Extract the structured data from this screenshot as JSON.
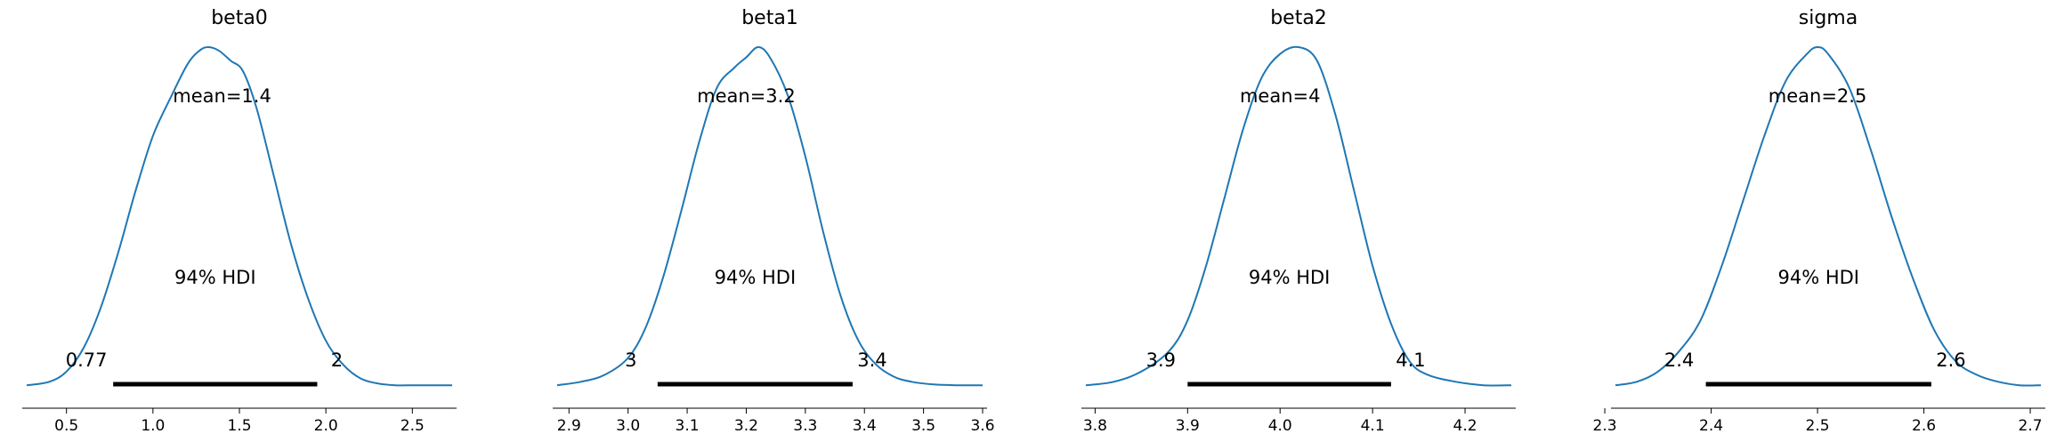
{
  "chart_data": [
    {
      "type": "area",
      "title": "beta0",
      "xlim": [
        0.27,
        2.73
      ],
      "ticks": [
        0.5,
        1.0,
        1.5,
        2.0,
        2.5
      ],
      "tick_labels": [
        "0.5",
        "1.0",
        "1.5",
        "2.0",
        "2.5"
      ],
      "mean": 1.4,
      "mean_label": "mean=1.4",
      "hdi_label": "94% HDI",
      "hdi": [
        0.77,
        1.95
      ],
      "hdi_low_label": "0.77",
      "hdi_high_label": "2",
      "density": {
        "x": [
          0.27,
          0.4,
          0.5,
          0.6,
          0.7,
          0.8,
          0.9,
          1.0,
          1.1,
          1.2,
          1.27,
          1.32,
          1.38,
          1.45,
          1.52,
          1.6,
          1.7,
          1.8,
          1.9,
          2.0,
          2.1,
          2.2,
          2.3,
          2.4,
          2.5,
          2.6,
          2.73
        ],
        "y": [
          0.01,
          0.02,
          0.05,
          0.12,
          0.24,
          0.4,
          0.58,
          0.74,
          0.85,
          0.95,
          0.99,
          1.0,
          0.99,
          0.96,
          0.93,
          0.82,
          0.62,
          0.42,
          0.26,
          0.14,
          0.07,
          0.03,
          0.015,
          0.01,
          0.01,
          0.01,
          0.01
        ]
      }
    },
    {
      "type": "area",
      "title": "beta1",
      "xlim": [
        2.88,
        3.6
      ],
      "ticks": [
        2.9,
        3.0,
        3.1,
        3.2,
        3.3,
        3.4,
        3.5,
        3.6
      ],
      "tick_labels": [
        "2.9",
        "3.0",
        "3.1",
        "3.2",
        "3.3",
        "3.4",
        "3.5",
        "3.6"
      ],
      "mean": 3.2,
      "mean_label": "mean=3.2",
      "hdi_label": "94% HDI",
      "hdi": [
        3.05,
        3.38
      ],
      "hdi_low_label": "3",
      "hdi_high_label": "3.4",
      "density": {
        "x": [
          2.88,
          2.92,
          2.96,
          3.0,
          3.03,
          3.06,
          3.09,
          3.12,
          3.15,
          3.18,
          3.2,
          3.22,
          3.24,
          3.27,
          3.3,
          3.33,
          3.36,
          3.39,
          3.42,
          3.45,
          3.48,
          3.52,
          3.56,
          3.6
        ],
        "y": [
          0.01,
          0.02,
          0.04,
          0.09,
          0.18,
          0.33,
          0.52,
          0.72,
          0.88,
          0.94,
          0.97,
          1.0,
          0.97,
          0.86,
          0.68,
          0.46,
          0.27,
          0.14,
          0.07,
          0.035,
          0.02,
          0.012,
          0.01,
          0.01
        ]
      }
    },
    {
      "type": "area",
      "title": "beta2",
      "xlim": [
        3.79,
        4.25
      ],
      "ticks": [
        3.8,
        3.9,
        4.0,
        4.1,
        4.2
      ],
      "tick_labels": [
        "3.8",
        "3.9",
        "4.0",
        "4.1",
        "4.2"
      ],
      "mean": 4.0,
      "mean_label": "mean=4",
      "hdi_label": "94% HDI",
      "hdi": [
        3.9,
        4.12
      ],
      "hdi_low_label": "3.9",
      "hdi_high_label": "4.1",
      "density": {
        "x": [
          3.79,
          3.82,
          3.85,
          3.88,
          3.9,
          3.92,
          3.94,
          3.96,
          3.98,
          4.0,
          4.02,
          4.04,
          4.06,
          4.08,
          4.1,
          4.12,
          4.14,
          4.16,
          4.19,
          4.22,
          4.25
        ],
        "y": [
          0.01,
          0.02,
          0.05,
          0.11,
          0.2,
          0.36,
          0.56,
          0.76,
          0.91,
          0.98,
          1.0,
          0.96,
          0.8,
          0.58,
          0.36,
          0.19,
          0.08,
          0.04,
          0.02,
          0.01,
          0.01
        ]
      }
    },
    {
      "type": "area",
      "title": "sigma",
      "xlim": [
        2.31,
        2.71
      ],
      "ticks": [
        2.3,
        2.4,
        2.5,
        2.6,
        2.7
      ],
      "tick_labels": [
        "2.3",
        "2.4",
        "2.5",
        "2.6",
        "2.7"
      ],
      "mean": 2.5,
      "mean_label": "mean=2.5",
      "hdi_label": "94% HDI",
      "hdi": [
        2.395,
        2.607
      ],
      "hdi_low_label": "2.4",
      "hdi_high_label": "2.6",
      "density": {
        "x": [
          2.31,
          2.33,
          2.35,
          2.37,
          2.39,
          2.41,
          2.43,
          2.45,
          2.47,
          2.49,
          2.5,
          2.51,
          2.53,
          2.55,
          2.57,
          2.59,
          2.61,
          2.63,
          2.65,
          2.67,
          2.69,
          2.71
        ],
        "y": [
          0.01,
          0.02,
          0.05,
          0.11,
          0.2,
          0.36,
          0.55,
          0.74,
          0.9,
          0.98,
          1.0,
          0.98,
          0.88,
          0.7,
          0.5,
          0.32,
          0.17,
          0.08,
          0.04,
          0.02,
          0.01,
          0.01
        ]
      }
    }
  ],
  "colors": {
    "density_line": "#1f77b4",
    "hdi_bar": "#000000",
    "axis": "#000000"
  }
}
